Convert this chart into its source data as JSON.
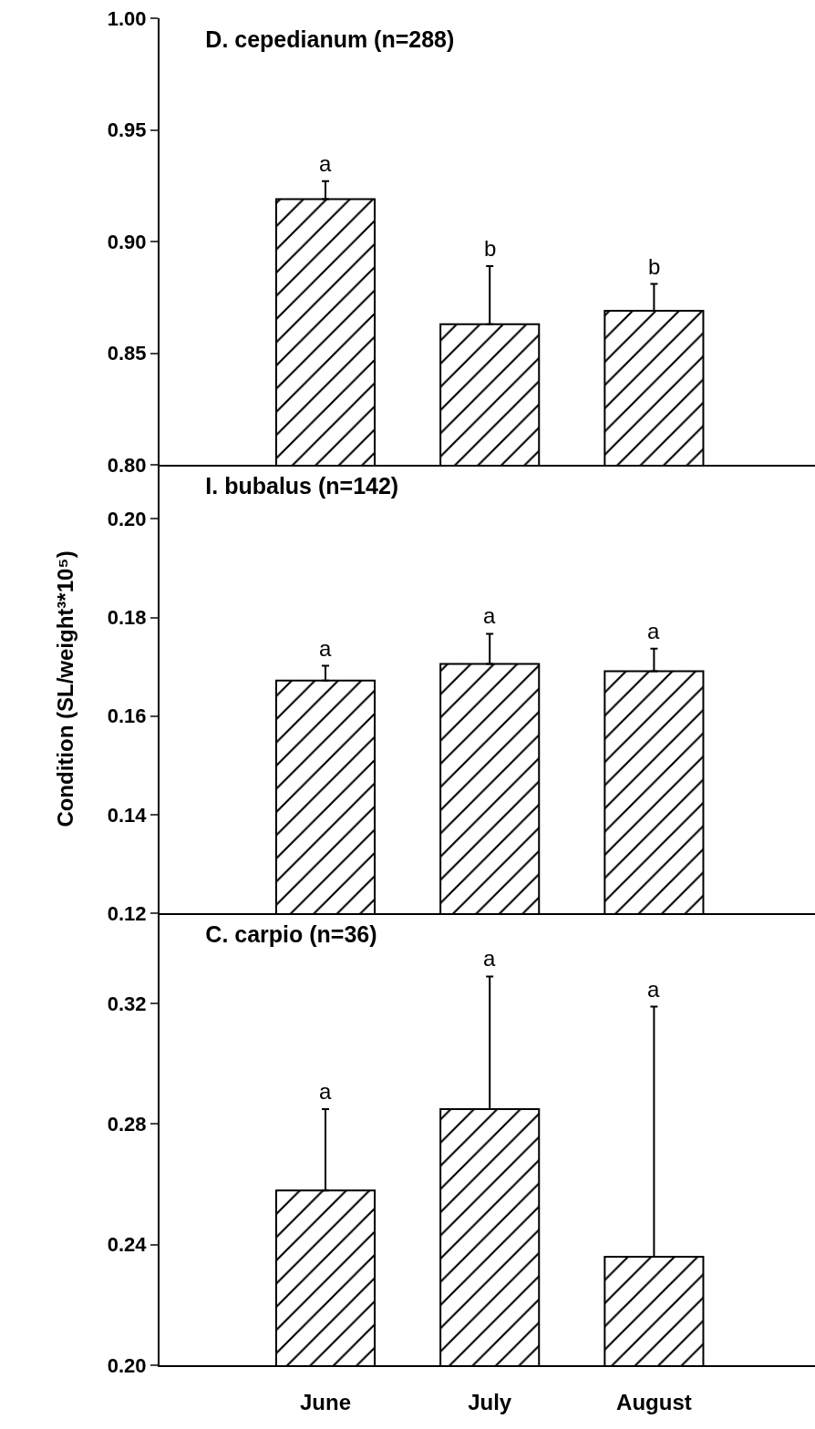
{
  "chart_data": [
    {
      "type": "bar",
      "title": "D. cepedianum (n=288)",
      "categories": [
        "June",
        "July",
        "August"
      ],
      "values": [
        0.919,
        0.863,
        0.869
      ],
      "errors": [
        [
          0.919,
          0.927
        ],
        [
          0.863,
          0.889
        ],
        [
          0.869,
          0.881
        ]
      ],
      "color": "#000000",
      "ylim": [
        0.8,
        1.0
      ],
      "yticks": [
        {
          "value": 0.8,
          "label": "0.80"
        },
        {
          "value": 0.85,
          "label": "0.85"
        },
        {
          "value": 0.9,
          "label": "0.90"
        },
        {
          "value": 0.95,
          "label": "0.95"
        },
        {
          "value": 1.0,
          "label": "1.00"
        }
      ],
      "tick_labels": "y",
      "grid": false,
      "legend": false,
      "annotations": [
        {
          "text": "a",
          "x": "June",
          "y": 0.927
        },
        {
          "text": "b",
          "x": "July",
          "y": 0.889
        },
        {
          "text": "b",
          "x": "August",
          "y": 0.881
        }
      ]
    },
    {
      "type": "bar",
      "title": "I. bubalus (n=142)",
      "ylabel": "Condition (SL/weight³*10⁵)",
      "categories": [
        "June",
        "July",
        "August"
      ],
      "values": [
        0.1672,
        0.1706,
        0.1691
      ],
      "errors": [
        [
          0.1672,
          0.1702
        ],
        [
          0.1706,
          0.1767
        ],
        [
          0.1691,
          0.1737
        ]
      ],
      "color": "#000000",
      "ylim": [
        0.12,
        0.211
      ],
      "yticks": [
        {
          "value": 0.12,
          "label": "0.12"
        },
        {
          "value": 0.14,
          "label": "0.14"
        },
        {
          "value": 0.16,
          "label": "0.16"
        },
        {
          "value": 0.18,
          "label": "0.18"
        },
        {
          "value": 0.2,
          "label": "0.20"
        }
      ],
      "tick_labels": "y",
      "grid": false,
      "legend": false,
      "annotations": [
        {
          "text": "a",
          "x": "June",
          "y": 0.1702
        },
        {
          "text": "a",
          "x": "July",
          "y": 0.1767
        },
        {
          "text": "a",
          "x": "August",
          "y": 0.1737
        }
      ]
    },
    {
      "type": "bar",
      "title": "C. carpio (n=36)",
      "categories": [
        "June",
        "July",
        "August"
      ],
      "values": [
        0.258,
        0.285,
        0.236
      ],
      "errors": [
        [
          0.258,
          0.285
        ],
        [
          0.285,
          0.329
        ],
        [
          0.236,
          0.319
        ]
      ],
      "color": "#000000",
      "ylim": [
        0.2,
        0.35
      ],
      "yticks": [
        {
          "value": 0.2,
          "label": "0.20"
        },
        {
          "value": 0.24,
          "label": "0.24"
        },
        {
          "value": 0.28,
          "label": "0.28"
        },
        {
          "value": 0.32,
          "label": "0.32"
        }
      ],
      "grid": false,
      "legend": false,
      "annotations": [
        {
          "text": "a",
          "x": "June",
          "y": 0.285
        },
        {
          "text": "a",
          "x": "July",
          "y": 0.329
        },
        {
          "text": "a",
          "x": "August",
          "y": 0.319
        }
      ]
    }
  ]
}
